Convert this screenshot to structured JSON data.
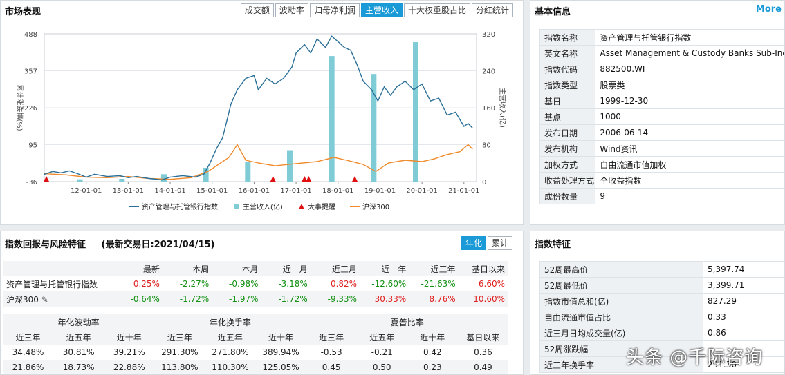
{
  "market": {
    "title": "市场表现",
    "tabs": [
      "成交额",
      "波动率",
      "归母净利润",
      "主营收入",
      "十大权重股占比",
      "分红统计"
    ],
    "active_tab": 3,
    "left_axis_label": "累计涨跌幅(%)",
    "right_axis_label": "主营收入(亿)",
    "legend": [
      "资产管理与托管银行指数",
      "主营收入(亿)",
      "大事提醒",
      "沪深300"
    ],
    "colors": {
      "index": "#2a6f97",
      "bar": "#7fccd6",
      "event": "#e01010",
      "hs300": "#f08a2a"
    },
    "chart_data": {
      "type": "line",
      "x_ticks": [
        "12-01-01",
        "13-01-01",
        "14-01-01",
        "15-01-01",
        "16-01-01",
        "17-01-01",
        "18-01-01",
        "19-01-01",
        "20-01-01",
        "21-01-01"
      ],
      "y_left_ticks": [
        "488",
        "357",
        "226",
        "95",
        "-36"
      ],
      "y_right_ticks": [
        "320",
        "240",
        "160",
        "80",
        "0"
      ],
      "ylim_left": [
        -36,
        488
      ],
      "ylim_right": [
        0,
        320
      ],
      "xlim": [
        2011.0,
        2021.3
      ],
      "series": [
        {
          "name": "资产管理与托管银行指数",
          "axis": "left",
          "x": [
            2011.0,
            2011.2,
            2011.4,
            2011.6,
            2011.8,
            2012.0,
            2012.2,
            2012.5,
            2012.8,
            2013.0,
            2013.2,
            2013.5,
            2013.8,
            2014.0,
            2014.3,
            2014.6,
            2014.8,
            2014.95,
            2015.1,
            2015.25,
            2015.35,
            2015.45,
            2015.6,
            2015.8,
            2016.0,
            2016.1,
            2016.3,
            2016.5,
            2016.7,
            2016.9,
            2017.0,
            2017.2,
            2017.35,
            2017.5,
            2017.7,
            2017.85,
            2018.0,
            2018.15,
            2018.3,
            2018.45,
            2018.6,
            2018.8,
            2018.95,
            2019.1,
            2019.25,
            2019.4,
            2019.6,
            2019.8,
            2020.0,
            2020.2,
            2020.4,
            2020.6,
            2020.8,
            2021.0,
            2021.1,
            2021.2
          ],
          "y": [
            -10,
            0,
            -5,
            2,
            -8,
            -20,
            -10,
            -18,
            -15,
            -22,
            -18,
            -25,
            -30,
            -20,
            -15,
            -20,
            -10,
            30,
            80,
            120,
            180,
            240,
            290,
            330,
            340,
            290,
            330,
            310,
            330,
            370,
            420,
            450,
            420,
            470,
            440,
            480,
            460,
            440,
            430,
            380,
            320,
            290,
            250,
            300,
            270,
            300,
            320,
            290,
            310,
            250,
            260,
            200,
            210,
            160,
            170,
            155
          ]
        },
        {
          "name": "沪深300",
          "axis": "left",
          "x": [
            2011.0,
            2011.5,
            2012.0,
            2012.5,
            2013.0,
            2013.5,
            2014.0,
            2014.5,
            2014.9,
            2015.2,
            2015.4,
            2015.6,
            2015.8,
            2016.1,
            2016.5,
            2017.0,
            2017.5,
            2017.9,
            2018.2,
            2018.6,
            2018.9,
            2019.2,
            2019.6,
            2020.0,
            2020.3,
            2020.6,
            2020.9,
            2021.1,
            2021.2
          ],
          "y": [
            -8,
            -12,
            -20,
            -22,
            -18,
            -25,
            -28,
            -22,
            0,
            30,
            50,
            95,
            40,
            30,
            20,
            28,
            35,
            50,
            40,
            25,
            0,
            30,
            40,
            35,
            45,
            60,
            70,
            95,
            80
          ]
        },
        {
          "name": "主营收入(亿)",
          "type": "bar",
          "axis": "right",
          "x": [
            2011.85,
            2012.85,
            2013.85,
            2014.85,
            2015.85,
            2016.85,
            2017.85,
            2018.85,
            2019.85
          ],
          "y": [
            5,
            6,
            16,
            30,
            42,
            68,
            272,
            233,
            302
          ]
        },
        {
          "name": "大事提醒",
          "type": "event",
          "x": [
            2011.05,
            2016.45,
            2017.2,
            2017.3,
            2018.4
          ]
        }
      ]
    }
  },
  "basic": {
    "title": "基本信息",
    "more": "More",
    "rows": [
      {
        "k": "指数名称",
        "v": "资产管理与托管银行指数"
      },
      {
        "k": "英文名称",
        "v": "Asset Management & Custody Banks Sub-Ind"
      },
      {
        "k": "指数代码",
        "v": "882500.WI"
      },
      {
        "k": "指数类型",
        "v": "股票类"
      },
      {
        "k": "基日",
        "v": "1999-12-30"
      },
      {
        "k": "基点",
        "v": "1000"
      },
      {
        "k": "发布日期",
        "v": "2006-06-14"
      },
      {
        "k": "发布机构",
        "v": "Wind资讯"
      },
      {
        "k": "加权方式",
        "v": "自由流通市值加权"
      },
      {
        "k": "收益处理方式",
        "v": "全收益指数"
      },
      {
        "k": "成份数量",
        "v": "9"
      }
    ]
  },
  "returns": {
    "title": "指数回报与风险特征",
    "date_label": "(最新交易日:2021/04/15)",
    "tabs": [
      "年化",
      "累计"
    ],
    "headers": [
      "",
      "最新",
      "本周",
      "本月",
      "近一月",
      "近三月",
      "近一年",
      "近三年",
      "基日以来"
    ],
    "rows": [
      {
        "name": "资产管理与托管银行指数",
        "values": [
          "0.25%",
          "-2.27%",
          "-0.98%",
          "-3.18%",
          "0.82%",
          "-12.60%",
          "-21.63%",
          "6.60%"
        ]
      },
      {
        "name": "沪深300",
        "values": [
          "-0.64%",
          "-1.72%",
          "-1.97%",
          "-1.72%",
          "-9.33%",
          "30.33%",
          "8.76%",
          "10.60%"
        ]
      }
    ],
    "group_headers": [
      "年化波动率",
      "年化换手率",
      "夏普比率"
    ],
    "sub_headers": [
      "近三年",
      "近五年",
      "近十年",
      "近三年",
      "近五年",
      "近十年",
      "近三年",
      "近五年",
      "近十年",
      "基日以来"
    ],
    "risk_rows": [
      [
        "34.48%",
        "30.81%",
        "39.21%",
        "291.30%",
        "271.80%",
        "389.94%",
        "-0.53",
        "-0.21",
        "0.42",
        "0.36"
      ],
      [
        "21.86%",
        "18.73%",
        "22.88%",
        "113.80%",
        "110.30%",
        "125.05%",
        "0.45",
        "0.50",
        "0.23",
        "0.49"
      ]
    ]
  },
  "features": {
    "title": "指数特征",
    "rows": [
      {
        "k": "52周最高价",
        "v": "5,397.74"
      },
      {
        "k": "52周最低价",
        "v": "3,399.71"
      },
      {
        "k": "指数市值总和(亿)",
        "v": "827.29"
      },
      {
        "k": "自由流通市值占比",
        "v": "0.33"
      },
      {
        "k": "近三月日均成交量(亿)",
        "v": "0.86"
      },
      {
        "k": "52周涨跌幅",
        "v": ""
      },
      {
        "k": "近三年换手率",
        "v": "291.30"
      }
    ]
  },
  "watermark": "头条 @千际咨询"
}
